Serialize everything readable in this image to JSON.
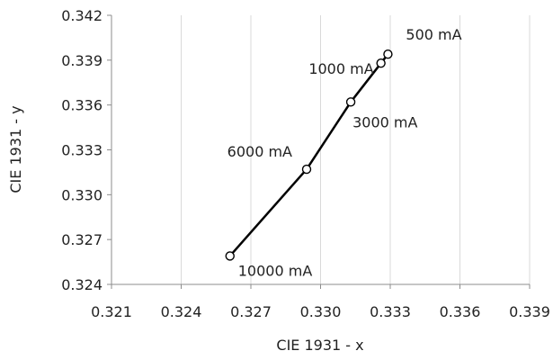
{
  "chart_data": {
    "type": "scatter",
    "title": "",
    "xlabel": "CIE 1931 - x",
    "ylabel": "CIE 1931 - y",
    "xlim": [
      0.321,
      0.339
    ],
    "ylim": [
      0.324,
      0.342
    ],
    "x_ticks": [
      "0.321",
      "0.324",
      "0.327",
      "0.330",
      "0.333",
      "0.336",
      "0.339"
    ],
    "y_ticks": [
      "0.324",
      "0.327",
      "0.330",
      "0.333",
      "0.336",
      "0.339",
      "0.342"
    ],
    "grid": "vertical",
    "line_color": "#000000",
    "grid_color": "#d9d9d9",
    "series": [
      {
        "points": [
          {
            "label": "500 mA",
            "x": 0.3329,
            "y": 0.3394
          },
          {
            "label": "1000 mA",
            "x": 0.3326,
            "y": 0.3388
          },
          {
            "label": "3000 mA",
            "x": 0.3313,
            "y": 0.3362
          },
          {
            "label": "6000 mA",
            "x": 0.3294,
            "y": 0.3317
          },
          {
            "label": "10000 mA",
            "x": 0.3261,
            "y": 0.3259
          }
        ]
      }
    ]
  }
}
